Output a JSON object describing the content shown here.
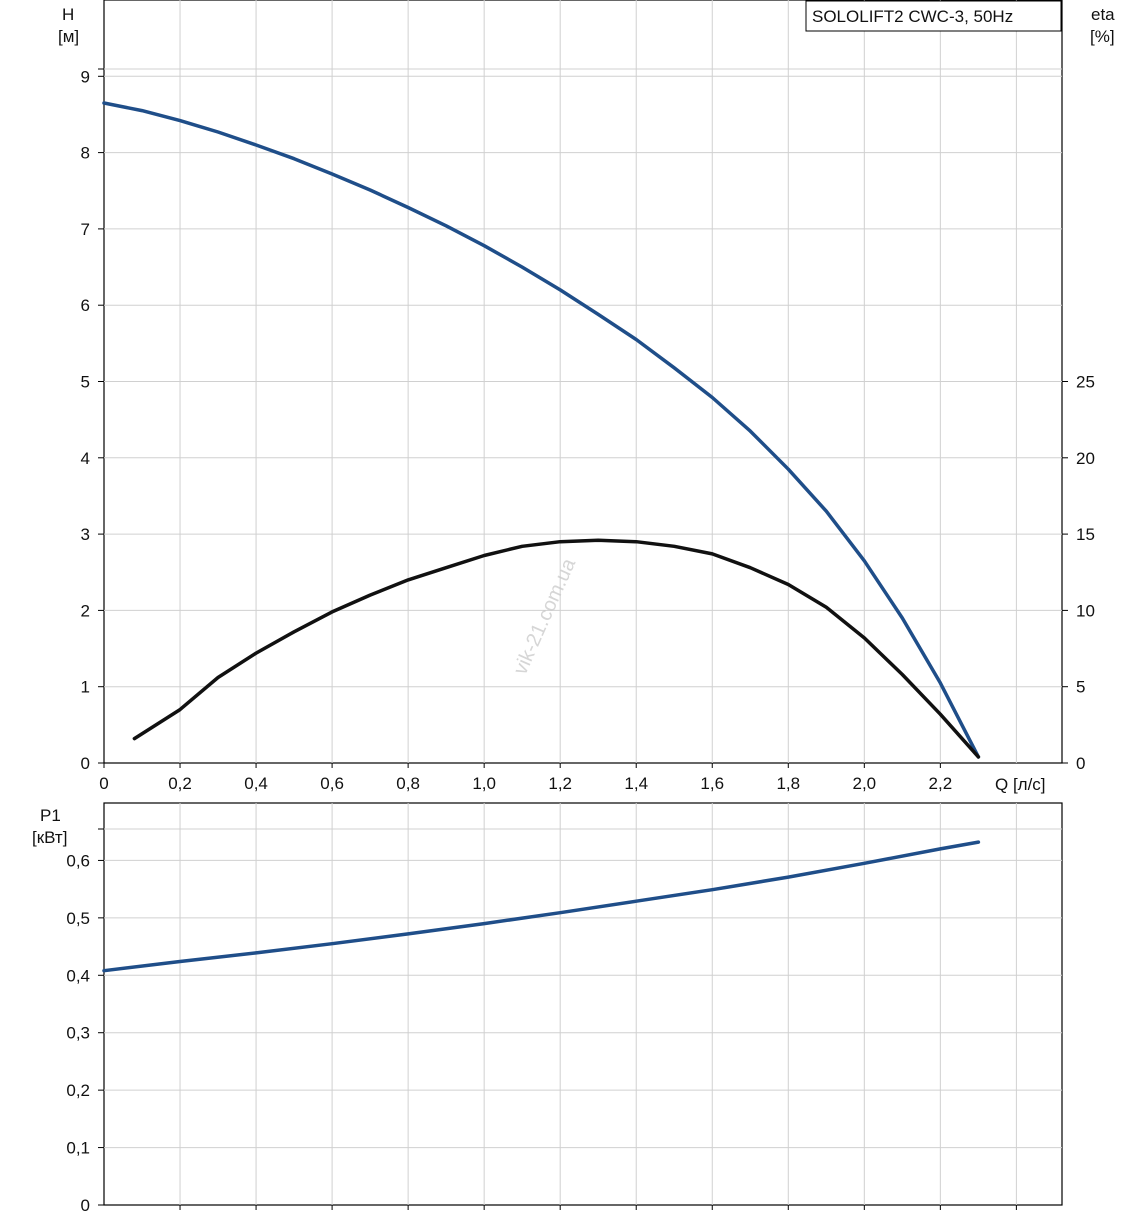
{
  "chart_data": [
    {
      "type": "line",
      "title": "SOLOLIFT2 CWC-3, 50Hz",
      "xlabel": "Q [л/с]",
      "ylabel": "H [м]",
      "ylabel_unit_name": "H",
      "ylabel_unit": "[м]",
      "y2label_name": "eta",
      "y2label_unit": "[%]",
      "xlim": [
        0,
        2.52
      ],
      "ylim": [
        0,
        10.0
      ],
      "y2lim": [
        0,
        50
      ],
      "grid": true,
      "x_ticks": [
        "0",
        "0,2",
        "0,4",
        "0,6",
        "0,8",
        "1,0",
        "1,2",
        "1,4",
        "1,6",
        "1,8",
        "2,0",
        "2,2"
      ],
      "y_ticks": [
        "0",
        "1",
        "2",
        "3",
        "4",
        "5",
        "6",
        "7",
        "8",
        "9"
      ],
      "y2_ticks": [
        "0",
        "5",
        "10",
        "15",
        "20",
        "25"
      ],
      "series": [
        {
          "axis": "left",
          "color": "#1f4e89",
          "x": [
            0,
            0.1,
            0.2,
            0.3,
            0.4,
            0.5,
            0.6,
            0.7,
            0.8,
            0.9,
            1.0,
            1.1,
            1.2,
            1.3,
            1.4,
            1.5,
            1.6,
            1.7,
            1.8,
            1.9,
            2.0,
            2.1,
            2.2,
            2.3
          ],
          "y": [
            8.65,
            8.55,
            8.42,
            8.27,
            8.1,
            7.92,
            7.72,
            7.51,
            7.28,
            7.04,
            6.78,
            6.5,
            6.2,
            5.88,
            5.55,
            5.18,
            4.79,
            4.35,
            3.85,
            3.3,
            2.65,
            1.9,
            1.05,
            0.08
          ]
        },
        {
          "axis": "right",
          "color": "#111111",
          "x": [
            0.08,
            0.2,
            0.3,
            0.4,
            0.5,
            0.6,
            0.7,
            0.8,
            0.9,
            1.0,
            1.1,
            1.2,
            1.3,
            1.4,
            1.5,
            1.6,
            1.7,
            1.8,
            1.9,
            2.0,
            2.1,
            2.2,
            2.3
          ],
          "y": [
            1.6,
            3.5,
            5.6,
            7.2,
            8.6,
            9.9,
            11.0,
            12.0,
            12.8,
            13.6,
            14.2,
            14.5,
            14.6,
            14.5,
            14.2,
            13.7,
            12.8,
            11.7,
            10.2,
            8.2,
            5.8,
            3.2,
            0.4
          ]
        }
      ]
    },
    {
      "type": "line",
      "xlabel": "",
      "ylabel": "P1 [кВт]",
      "ylabel_name": "P1",
      "ylabel_unit": "[кВт]",
      "xlim": [
        0,
        2.52
      ],
      "ylim": [
        0,
        0.7
      ],
      "grid": true,
      "y_ticks": [
        "0",
        "0,1",
        "0,2",
        "0,3",
        "0,4",
        "0,5",
        "0,6"
      ],
      "series": [
        {
          "color": "#1f4e89",
          "x": [
            0,
            0.2,
            0.4,
            0.6,
            0.8,
            1.0,
            1.2,
            1.4,
            1.6,
            1.8,
            2.0,
            2.2,
            2.3
          ],
          "y": [
            0.408,
            0.424,
            0.439,
            0.455,
            0.472,
            0.49,
            0.509,
            0.529,
            0.549,
            0.571,
            0.595,
            0.62,
            0.632
          ]
        }
      ]
    }
  ],
  "watermark": "vik-21.com.ua"
}
